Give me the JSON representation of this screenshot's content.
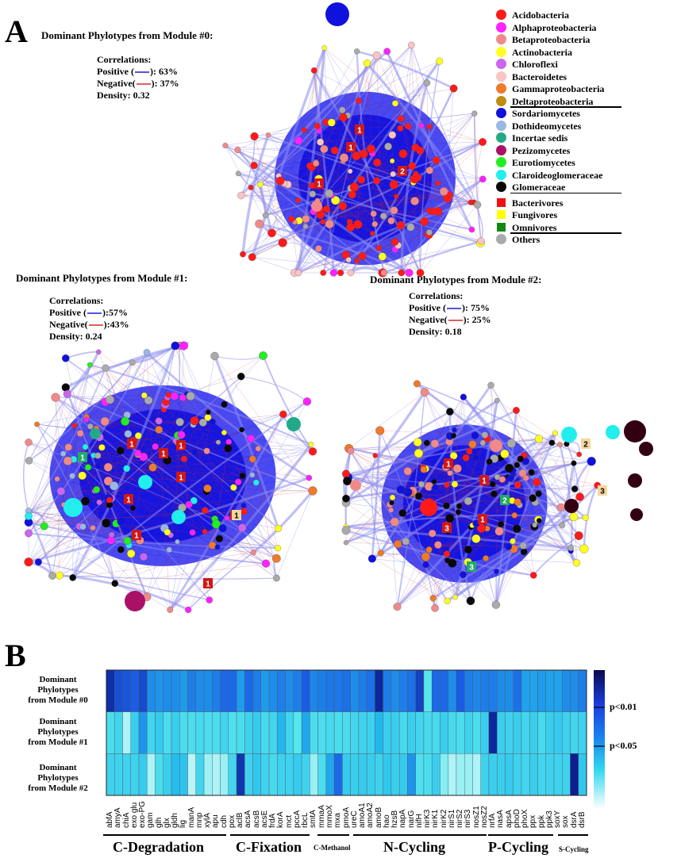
{
  "panel_a": {
    "letter": "A",
    "modules": [
      {
        "title": "Dominant Phylotypes from Module #0:",
        "corr_title": "Correlations:",
        "positive_label": "Positive (",
        "positive_value": "): 63%",
        "negative_label": "Negative(",
        "negative_value": "): 37%",
        "density": "Density: 0.32"
      },
      {
        "title": "Dominant Phylotypes from Module #1:",
        "corr_title": "Correlations:",
        "positive_label": "Positive (",
        "positive_value": "):57%",
        "negative_label": "Negative(",
        "negative_value": "):43%",
        "density": "Density: 0.24"
      },
      {
        "title": "Dominant Phylotypes from Module #2:",
        "corr_title": "Correlations:",
        "positive_label": "Positive (",
        "positive_value": "): 75%",
        "negative_label": "Negative(",
        "negative_value": "): 25%",
        "density": "Density: 0.18"
      }
    ],
    "edge_colors": {
      "positive": "#1a1ad6",
      "negative": "#d02a2a"
    },
    "legend": [
      {
        "label": "Acidobacteria",
        "color": "#ff1a1a",
        "shape": "circle"
      },
      {
        "label": "Alphaproteobacteria",
        "color": "#ff22ff",
        "shape": "circle"
      },
      {
        "label": "Betaproteobacteria",
        "color": "#f08a8a",
        "shape": "circle"
      },
      {
        "label": "Actinobacteria",
        "color": "#ffff22",
        "shape": "circle"
      },
      {
        "label": "Chloroflexi",
        "color": "#cc66ee",
        "shape": "circle"
      },
      {
        "label": "Bacteroidetes",
        "color": "#f9c4c4",
        "shape": "circle"
      },
      {
        "label": "Gammaproteobacteria",
        "color": "#ee7a2a",
        "shape": "circle"
      },
      {
        "label": "Deltaproteobacteria",
        "color": "#bf8c12",
        "shape": "circle"
      },
      {
        "label": "Sordariomycetes",
        "color": "#1111dd",
        "shape": "circle"
      },
      {
        "label": "Dothideomycetes",
        "color": "#9ab8e6",
        "shape": "circle"
      },
      {
        "label": "Incertae sedis",
        "color": "#22aa88",
        "shape": "circle"
      },
      {
        "label": "Pezizomycetes",
        "color": "#aa1166",
        "shape": "circle"
      },
      {
        "label": "Eurotiomycetes",
        "color": "#22ee22",
        "shape": "circle"
      },
      {
        "label": "Claroideoglomeraceae",
        "color": "#22eeee",
        "shape": "circle"
      },
      {
        "label": "Glomeraceae",
        "color": "#080808",
        "shape": "circle"
      },
      {
        "label": "Bacterivores",
        "color": "#ee1111",
        "shape": "square"
      },
      {
        "label": "Fungivores",
        "color": "#ffff00",
        "shape": "square"
      },
      {
        "label": "Omnivores",
        "color": "#118811",
        "shape": "square"
      },
      {
        "label": "Others",
        "color": "#aaaaaa",
        "shape": "circle"
      }
    ],
    "network_markers": {
      "module0": [
        {
          "text": "1",
          "color": "#d01818"
        },
        {
          "text": "1",
          "color": "#d01818"
        },
        {
          "text": "1",
          "color": "#d01818"
        },
        {
          "text": "2",
          "color": "#d01818"
        }
      ],
      "module1": [
        {
          "text": "1",
          "color": "#d01818"
        },
        {
          "text": "1",
          "color": "#d01818"
        },
        {
          "text": "1",
          "color": "#d01818"
        },
        {
          "text": "1",
          "color": "#d01818"
        },
        {
          "text": "1",
          "color": "#d01818"
        },
        {
          "text": "1",
          "color": "#d01818"
        },
        {
          "text": "1",
          "color": "#d01818"
        },
        {
          "text": "1",
          "color": "#d01818"
        },
        {
          "text": "1",
          "color": "#22aa66"
        },
        {
          "text": "1",
          "color": "#f5d79e"
        }
      ],
      "module2": [
        {
          "text": "1",
          "color": "#d01818"
        },
        {
          "text": "1",
          "color": "#d01818"
        },
        {
          "text": "1",
          "color": "#d01818"
        },
        {
          "text": "3",
          "color": "#d01818"
        },
        {
          "text": "2",
          "color": "#22aa66"
        },
        {
          "text": "3",
          "color": "#22aa66"
        },
        {
          "text": "2",
          "color": "#f5d79e"
        },
        {
          "text": "3",
          "color": "#f5d79e"
        }
      ]
    }
  },
  "panel_b": {
    "letter": "B",
    "row_labels": [
      [
        "Dominant",
        "Phylotypes",
        "from Module #0"
      ],
      [
        "Dominant",
        "Phylotypes",
        "from Module #1"
      ],
      [
        "Dominant",
        "Phylotypes",
        "from Module #2"
      ]
    ],
    "colorbar_labels": [
      "p<0.01",
      "p<0.05"
    ],
    "categories": [
      {
        "label": "C-Degradation",
        "small": false
      },
      {
        "label": "C-Fixation",
        "small": false
      },
      {
        "label": "C-Methanol",
        "small": true
      },
      {
        "label": "N-Cycling",
        "small": false
      },
      {
        "label": "P-Cycling",
        "small": false
      },
      {
        "label": "S-Cycling",
        "small": true
      }
    ],
    "chart_data": {
      "type": "heatmap",
      "genes": [
        "abfA",
        "amyA",
        "chiA",
        "exo glu",
        "exo-PG",
        "gam",
        "glh",
        "glx",
        "gldh",
        "lig",
        "manA",
        "mnp",
        "xylA",
        "apu",
        "cdh",
        "pox",
        "aclB",
        "acsA",
        "acsB",
        "acsE",
        "frdA",
        "korA",
        "mct",
        "pccA",
        "rbcL",
        "smtA",
        "mmaA",
        "mmoX",
        "mxa",
        "pmoA",
        "ureC",
        "amoA1",
        "amoA2",
        "amoB",
        "hao",
        "hzsB",
        "napA",
        "narG",
        "nifH",
        "nirK3",
        "nirK1",
        "nirK2",
        "nirS1",
        "nirS2",
        "nirS3",
        "nosZ1",
        "nosZ2",
        "nrfA",
        "nasA",
        "apsA",
        "phoD",
        "phoX",
        "ppx",
        "ppk",
        "ppk3",
        "soxY",
        "sox",
        "dsrA",
        "dsrB"
      ],
      "rows": [
        "Module #0",
        "Module #1",
        "Module #2"
      ],
      "values": [
        [
          0.92,
          0.8,
          0.78,
          0.75,
          0.82,
          0.62,
          0.6,
          0.62,
          0.62,
          0.58,
          0.66,
          0.62,
          0.62,
          0.66,
          0.72,
          0.72,
          0.58,
          0.72,
          0.66,
          0.58,
          0.62,
          0.66,
          0.62,
          0.66,
          0.76,
          0.64,
          0.66,
          0.68,
          0.68,
          0.7,
          0.62,
          0.66,
          0.7,
          0.95,
          0.66,
          0.62,
          0.66,
          0.7,
          0.85,
          0.25,
          0.72,
          0.72,
          0.62,
          0.76,
          0.66,
          0.64,
          0.66,
          0.66,
          0.62,
          0.62,
          0.7,
          0.56,
          0.56,
          0.58,
          0.56,
          0.56,
          0.62,
          0.62,
          0.66
        ],
        [
          0.3,
          0.35,
          0.12,
          0.38,
          0.6,
          0.34,
          0.4,
          0.3,
          0.38,
          0.3,
          0.3,
          0.32,
          0.3,
          0.3,
          0.35,
          0.28,
          0.3,
          0.36,
          0.4,
          0.32,
          0.34,
          0.5,
          0.35,
          0.25,
          0.55,
          0.3,
          0.3,
          0.32,
          0.3,
          0.3,
          0.34,
          0.36,
          0.36,
          0.5,
          0.38,
          0.38,
          0.32,
          0.38,
          0.34,
          0.32,
          0.32,
          0.38,
          0.32,
          0.3,
          0.36,
          0.3,
          0.38,
          0.95,
          0.38,
          0.36,
          0.38,
          0.34,
          0.38,
          0.32,
          0.38,
          0.4,
          0.36,
          0.34,
          0.36
        ],
        [
          0.36,
          0.36,
          0.36,
          0.36,
          0.4,
          0.12,
          0.3,
          0.38,
          0.48,
          0.44,
          0.1,
          0.34,
          0.14,
          0.12,
          0.15,
          0.34,
          0.9,
          0.36,
          0.42,
          0.36,
          0.32,
          0.36,
          0.36,
          0.4,
          0.36,
          0.15,
          0.3,
          0.55,
          0.72,
          0.4,
          0.38,
          0.4,
          0.38,
          0.36,
          0.42,
          0.38,
          0.4,
          0.6,
          0.28,
          0.3,
          0.38,
          0.18,
          0.12,
          0.15,
          0.15,
          0.12,
          0.36,
          0.38,
          0.38,
          0.4,
          0.36,
          0.34,
          0.38,
          0.34,
          0.36,
          0.36,
          0.36,
          0.98,
          0.42
        ]
      ],
      "category_spans": [
        [
          0,
          15
        ],
        [
          16,
          24
        ],
        [
          25,
          28
        ],
        [
          29,
          47
        ],
        [
          48,
          55
        ],
        [
          56,
          58
        ]
      ],
      "color_scale": [
        "#ffffff",
        "#55e6ee",
        "#22b8ee",
        "#1a5ee6",
        "#0a1a88"
      ]
    }
  }
}
